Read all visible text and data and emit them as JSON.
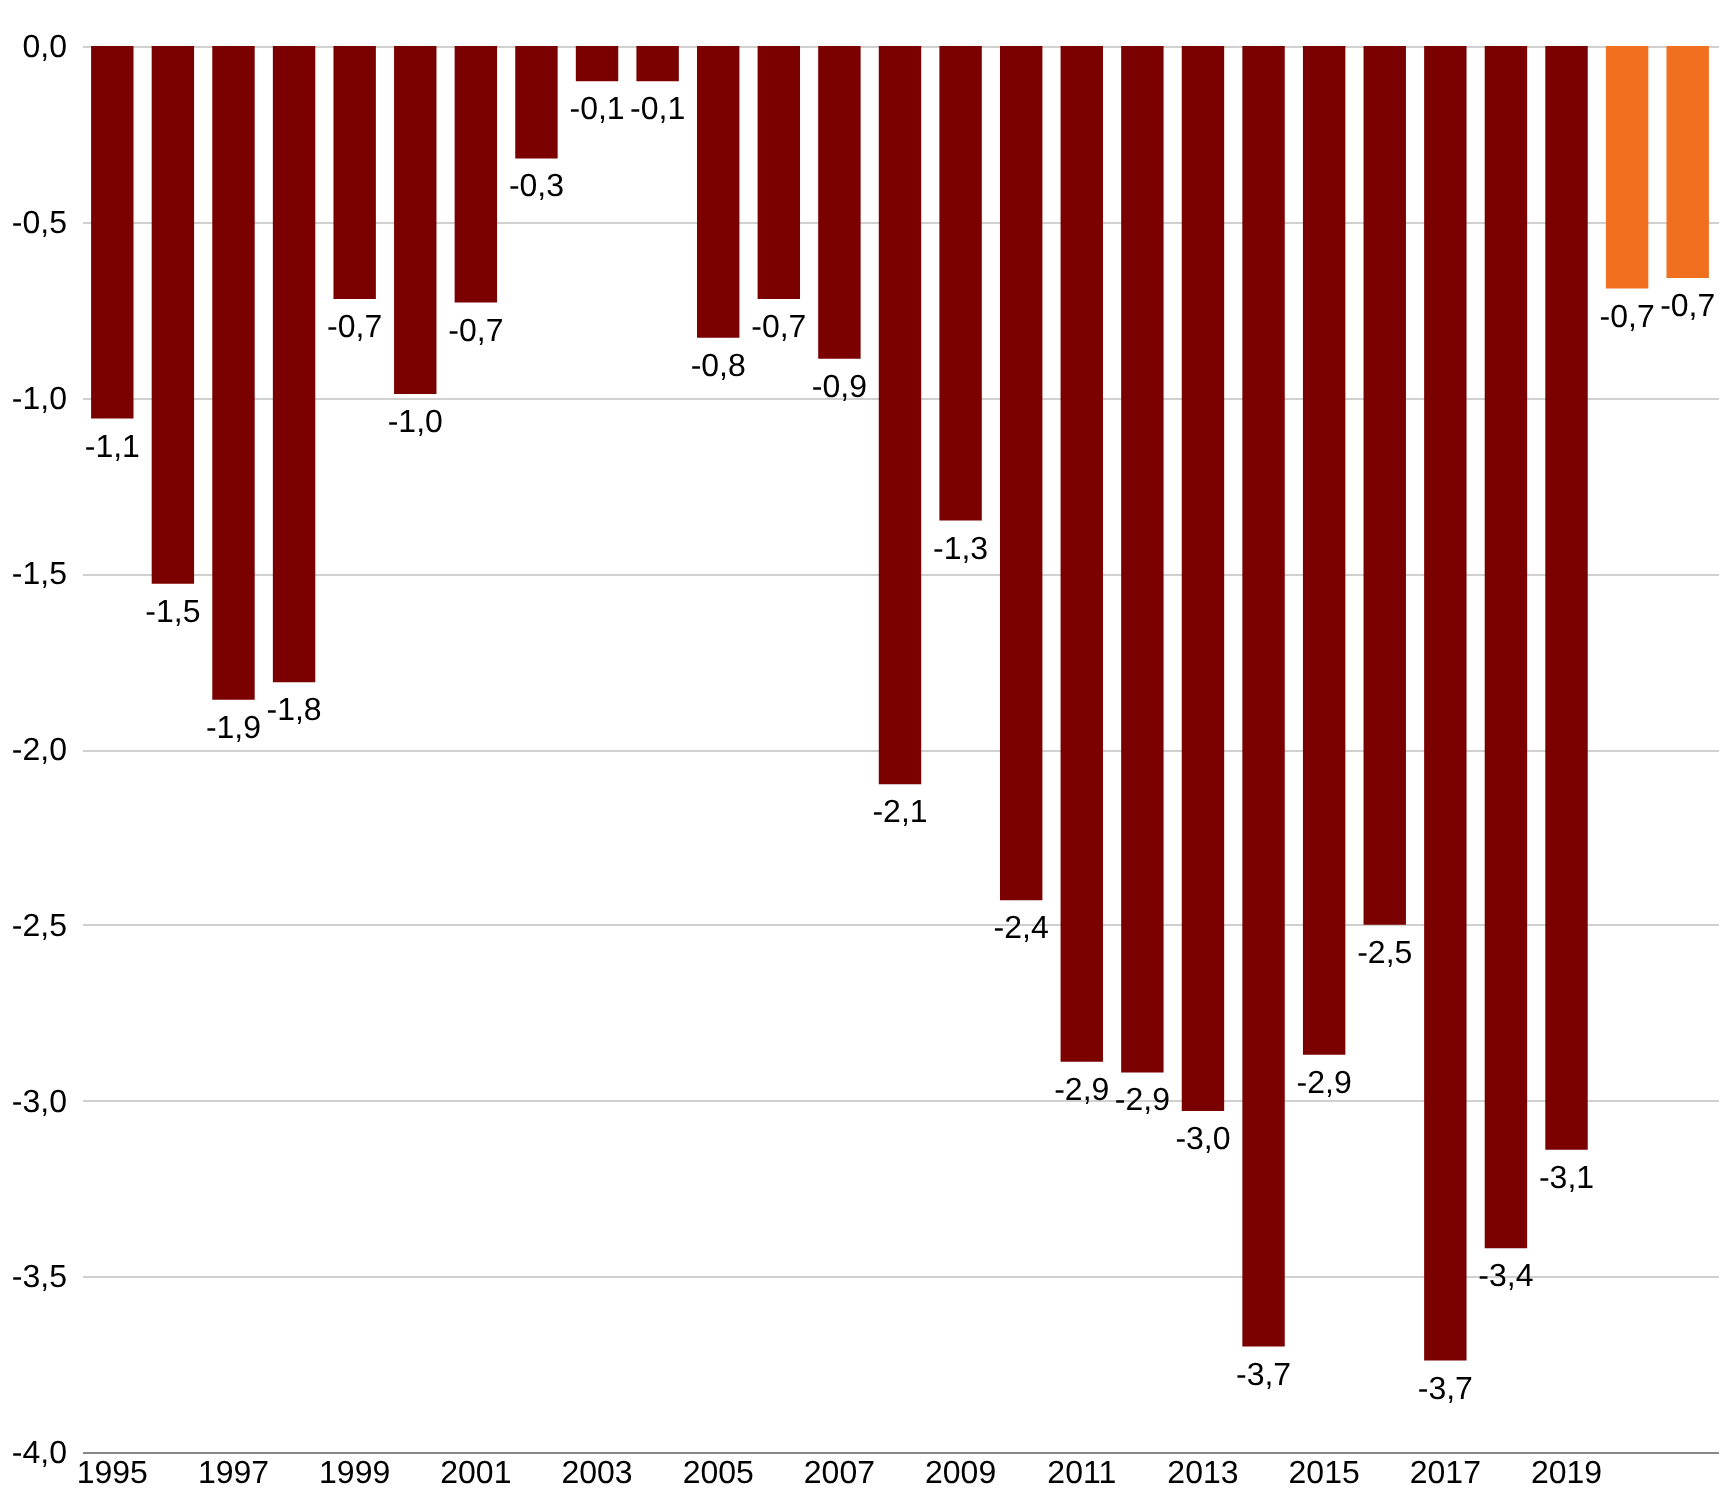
{
  "chart_data": {
    "type": "bar",
    "categories": [
      "1995",
      null,
      "1997",
      null,
      "1999",
      null,
      "2001",
      null,
      "2003",
      null,
      "2005",
      null,
      "2007",
      null,
      "2009",
      null,
      "2011",
      null,
      "2013",
      null,
      "2015",
      null,
      "2017",
      null,
      "2019",
      null,
      null
    ],
    "values": [
      -1.06,
      -1.53,
      -1.86,
      -1.81,
      -0.72,
      -0.99,
      -0.73,
      -0.32,
      -0.1,
      -0.1,
      -0.83,
      -0.72,
      -0.89,
      -2.1,
      -1.35,
      -2.43,
      -2.89,
      -2.92,
      -3.03,
      -3.7,
      -2.87,
      -2.5,
      -3.74,
      -3.42,
      -3.14,
      -0.69,
      -0.66
    ],
    "colors": [
      "#7b0000",
      "#7b0000",
      "#7b0000",
      "#7b0000",
      "#7b0000",
      "#7b0000",
      "#7b0000",
      "#7b0000",
      "#7b0000",
      "#7b0000",
      "#7b0000",
      "#7b0000",
      "#7b0000",
      "#7b0000",
      "#7b0000",
      "#7b0000",
      "#7b0000",
      "#7b0000",
      "#7b0000",
      "#7b0000",
      "#7b0000",
      "#7b0000",
      "#7b0000",
      "#7b0000",
      "#7b0000",
      "#f07020",
      "#f07020"
    ],
    "value_labels": [
      "-1,1",
      "-1,5",
      "-1,9",
      "-1,8",
      "-0,7",
      "-1,0",
      "-0,7",
      "-0,3",
      "-0,1",
      "-0,1",
      "-0,8",
      "-0,7",
      "-0,9",
      "-2,1",
      "-1,3",
      "-2,4",
      "-2,9",
      "-2,9",
      "-3,0",
      "-3,7",
      "-2,9",
      "-2,5",
      "-3,7",
      "-3,4",
      "-3,1",
      "-0,7",
      "-0,7"
    ],
    "ylim": [
      -4,
      0
    ],
    "yticks": [
      {
        "value": -4,
        "label": "-4,0"
      },
      {
        "value": -3.5,
        "label": "-3,5"
      },
      {
        "value": -3,
        "label": "-3,0"
      },
      {
        "value": -2.5,
        "label": "-2,5"
      },
      {
        "value": -2,
        "label": "-2,0"
      },
      {
        "value": -1.5,
        "label": "-1,5"
      },
      {
        "value": -1,
        "label": "-1,0"
      },
      {
        "value": -0.5,
        "label": "-0,5"
      },
      {
        "value": 0,
        "label": "0,0"
      }
    ],
    "grid": "y"
  }
}
